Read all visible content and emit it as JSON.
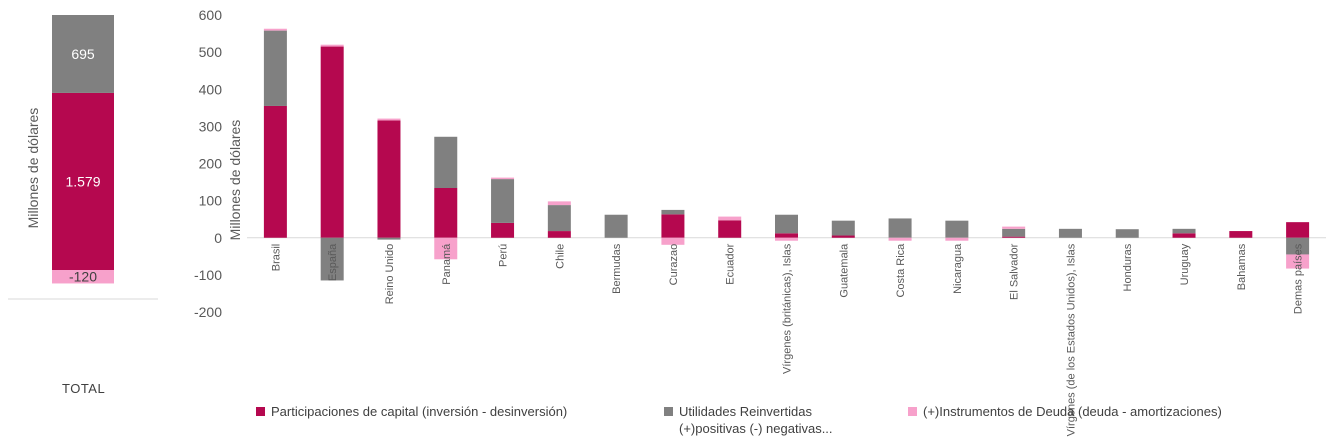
{
  "colors": {
    "capital": "#B5084F",
    "utilidades": "#808080",
    "deuda": "#F7A1CB",
    "axis_text": "#595959",
    "grid": "#D9D9D9"
  },
  "total_panel": {
    "ylabel": "Millones de dólares",
    "label": "TOTAL",
    "values": {
      "capital": 1579,
      "utilidades": 695,
      "deuda": -120
    },
    "value_labels": {
      "capital": "1.579",
      "utilidades": "695",
      "deuda": "-120"
    }
  },
  "legend": {
    "capital": "Participaciones de capital (inversión - desinversión)",
    "utilidades_line1": "Utilidades Reinvertidas",
    "utilidades_line2": "(+)positivas (-) negativas...",
    "deuda": "(+)Instrumentos de Deuda (deuda  - amortizaciones)"
  },
  "chart_data": [
    {
      "type": "bar",
      "stacked": true,
      "ylabel": "Millones de dólares",
      "categories": [
        "TOTAL"
      ],
      "series": [
        {
          "name": "Participaciones de capital (inversión - desinversión)",
          "key": "capital",
          "values": [
            1579
          ]
        },
        {
          "name": "Utilidades Reinvertidas (+)positivas (-) negativas...",
          "key": "utilidades",
          "values": [
            695
          ]
        },
        {
          "name": "(+)Instrumentos de Deuda (deuda  - amortizaciones)",
          "key": "deuda",
          "values": [
            -120
          ]
        }
      ]
    },
    {
      "type": "bar",
      "stacked": true,
      "ylabel": "Millones de dólares",
      "ylim": [
        -200,
        600
      ],
      "yticks": [
        600,
        500,
        400,
        300,
        200,
        100,
        0,
        -100,
        -200
      ],
      "ytick_labels": [
        "600",
        "500",
        "400",
        "300",
        "200",
        "100",
        "0",
        "-100",
        "-200"
      ],
      "categories": [
        "Brasil",
        "España",
        "Reino Unido",
        "Panamá",
        "Perú",
        "Chile",
        "Bermudas",
        "Curazao",
        "Ecuador",
        "Vírgenes (británicas), Islas",
        "Guatemala",
        "Costa Rica",
        "Nicaragua",
        "El Salvador",
        "Vírgenes (de los Estados Unidos), Islas",
        "Honduras",
        "Uruguay",
        "Bahamas",
        "Demas países"
      ],
      "series": [
        {
          "name": "Participaciones de capital (inversión - desinversión)",
          "key": "capital",
          "values": [
            355,
            515,
            316,
            134,
            40,
            18,
            0,
            63,
            47,
            12,
            6,
            0,
            0,
            3,
            0,
            0,
            12,
            18,
            42
          ]
        },
        {
          "name": "Utilidades Reinvertidas (+)positivas (-) negativas...",
          "key": "utilidades",
          "values": [
            203,
            -115,
            -5,
            138,
            118,
            70,
            62,
            12,
            0,
            50,
            40,
            52,
            46,
            21,
            24,
            23,
            12,
            0,
            -45
          ]
        },
        {
          "name": "(+)Instrumentos de Deuda (deuda  - amortizaciones)",
          "key": "deuda",
          "values": [
            5,
            5,
            5,
            -58,
            4,
            10,
            0,
            -19,
            10,
            -8,
            0,
            -8,
            -8,
            6,
            0,
            0,
            0,
            0,
            -38
          ]
        }
      ]
    }
  ]
}
